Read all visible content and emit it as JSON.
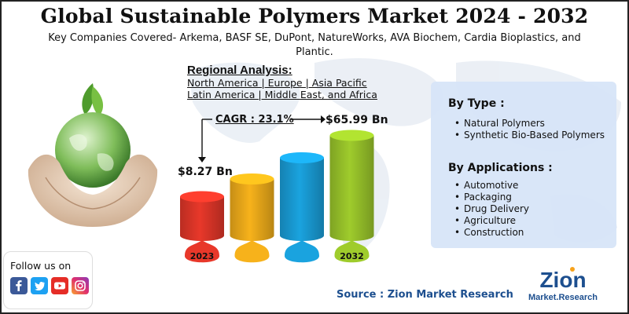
{
  "title": "Global Sustainable Polymers Market 2024 - 2032",
  "subtitle": "Key Companies Covered- Arkema, BASF SE, DuPont, NatureWorks, AVA Biochem, Cardia Bioplastics, and Plantic.",
  "regional": {
    "heading": "Regional Analysis:",
    "line1": "North America | Europe | Asia Pacific",
    "line2": "Latin America | Middle East, and Africa"
  },
  "chart_data": {
    "type": "bar",
    "categories": [
      "2023",
      "",
      "",
      "2032"
    ],
    "values": [
      8.27,
      null,
      null,
      65.99
    ],
    "value_labels": [
      "$8.27 Bn",
      "",
      "",
      "$65.99 Bn"
    ],
    "annotation": "CAGR : 23.1%",
    "colors": [
      "#e8382a",
      "#f7b21b",
      "#1aa3df",
      "#9fcc2c"
    ]
  },
  "by_type": {
    "heading": "By Type :",
    "items": [
      "Natural Polymers",
      "Synthetic Bio-Based Polymers"
    ]
  },
  "by_applications": {
    "heading": "By Applications :",
    "items": [
      "Automotive",
      "Packaging",
      "Drug Delivery",
      "Agriculture",
      "Construction"
    ]
  },
  "follow": {
    "label": "Follow us on",
    "icons": [
      "facebook-icon",
      "twitter-icon",
      "youtube-icon",
      "instagram-icon"
    ]
  },
  "source": "Source : Zion Market Research",
  "logo": {
    "main": "Zion",
    "sub": "Market.Research"
  }
}
